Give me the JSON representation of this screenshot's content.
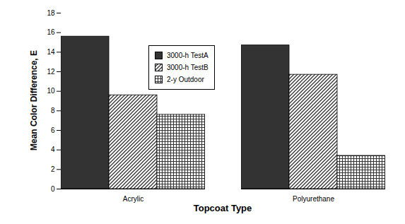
{
  "chart_data": {
    "type": "bar",
    "categories": [
      "Acrylic",
      "Polyurethane"
    ],
    "series": [
      {
        "name": "3000-h TestA",
        "color": "#333333",
        "values": [
          15.6,
          14.7
        ]
      },
      {
        "name": "3000-h TestB",
        "color": "#333333",
        "values": [
          9.6,
          11.7
        ]
      },
      {
        "name": "2-y Outdoor",
        "color": "#333333",
        "values": [
          7.6,
          3.4
        ]
      }
    ],
    "x_label": "Topcoat Type",
    "y_label": "Mean Color Difference, E",
    "ylim": [
      0,
      18
    ],
    "yticks": [
      0,
      2,
      4,
      6,
      8,
      10,
      12,
      14,
      16,
      18
    ],
    "grid": false,
    "legend": "top"
  }
}
